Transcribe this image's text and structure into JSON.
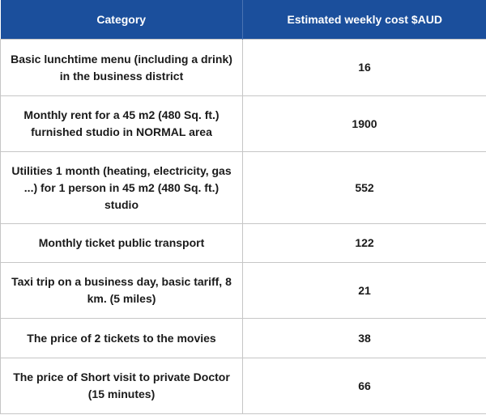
{
  "table": {
    "headers": {
      "category": "Category",
      "cost": "Estimated weekly cost $AUD"
    },
    "rows": [
      {
        "category": "Basic lunchtime menu (including a drink) in the business district",
        "cost": "16"
      },
      {
        "category": "Monthly rent for a 45 m2 (480 Sq. ft.) furnished studio in NORMAL area",
        "cost": "1900"
      },
      {
        "category": "Utilities 1 month (heating, electricity, gas ...) for 1 person in 45 m2 (480 Sq. ft.) studio",
        "cost": "552"
      },
      {
        "category": "Monthly ticket public transport",
        "cost": "122"
      },
      {
        "category": "Taxi trip on a business day, basic tariff, 8 km. (5 miles)",
        "cost": "21"
      },
      {
        "category": "The price of 2 tickets to the movies",
        "cost": "38"
      },
      {
        "category": "The price of Short visit to private Doctor (15 minutes)",
        "cost": "66"
      }
    ]
  },
  "colors": {
    "header_background": "#1b4f9c",
    "header_text": "#ffffff",
    "grid_line": "#c6c6c6"
  }
}
